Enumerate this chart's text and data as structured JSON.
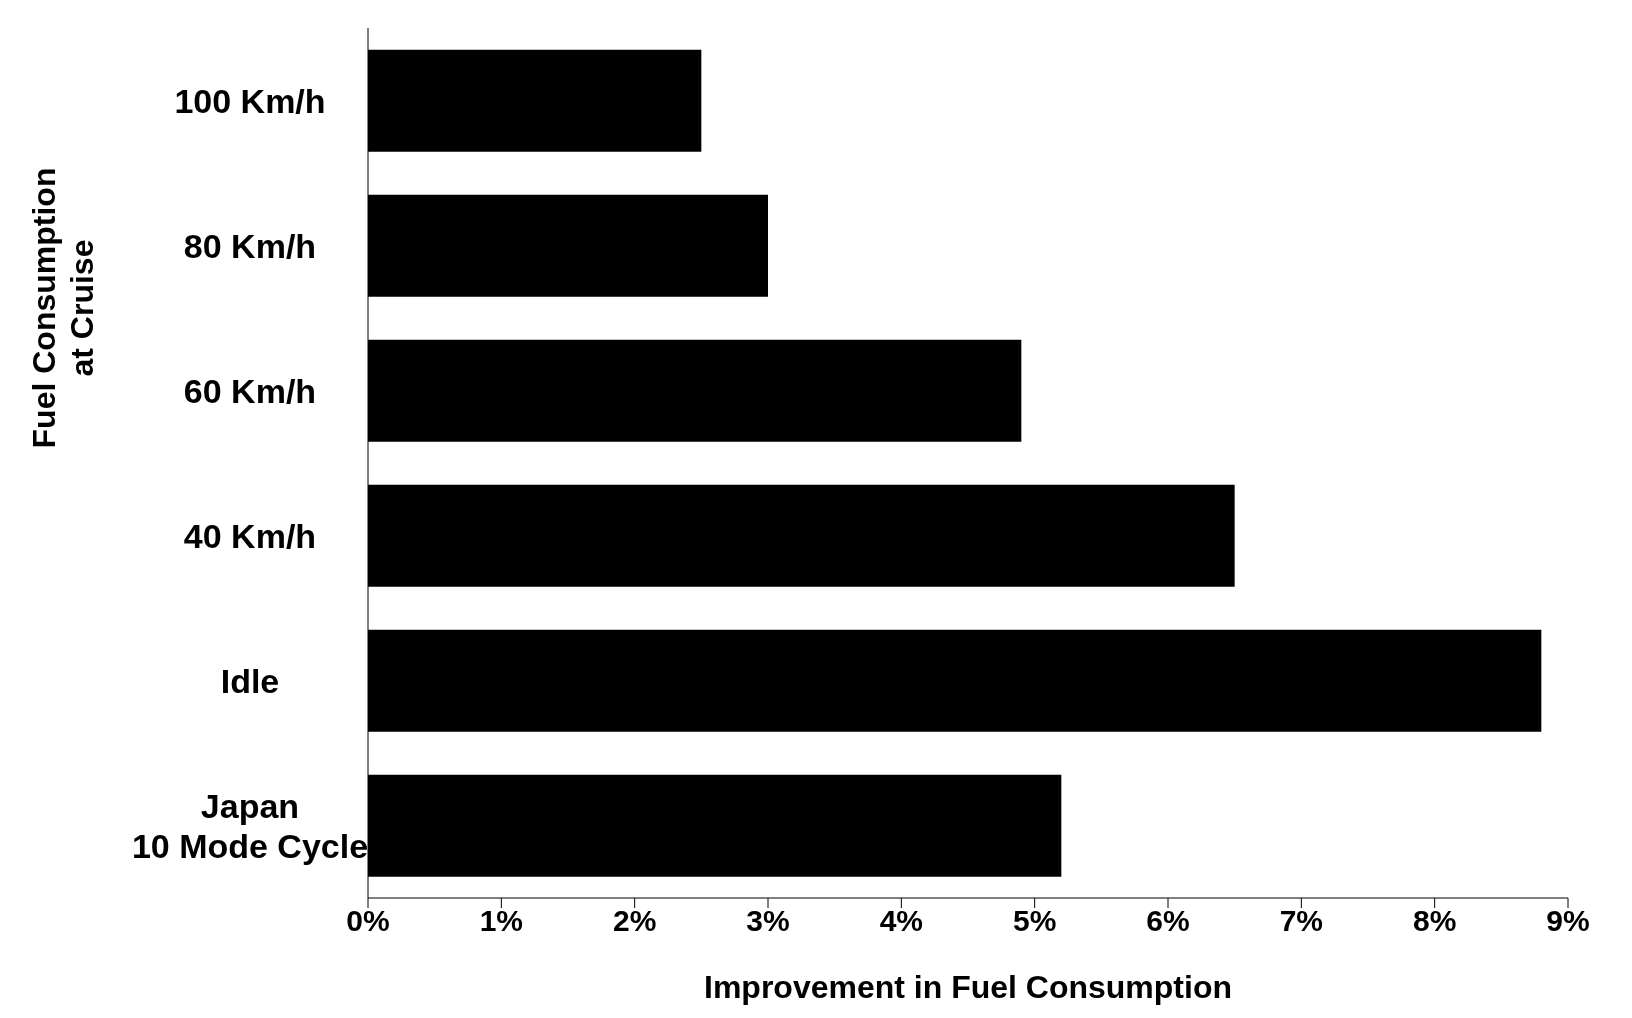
{
  "chart_data": {
    "type": "bar",
    "orientation": "horizontal",
    "xlabel": "Improvement in Fuel Consumption",
    "ylabel": "Fuel Consumption\nat Cruise",
    "categories": [
      "100 Km/h",
      "80 Km/h",
      "60 Km/h",
      "40 Km/h",
      "Idle",
      "Japan\n10 Mode Cycle"
    ],
    "values": [
      2.5,
      3.0,
      4.9,
      6.5,
      8.8,
      5.2
    ],
    "color": "#000000",
    "xlim": [
      0,
      9
    ],
    "xticks": [
      {
        "value": 0,
        "label": "0%"
      },
      {
        "value": 1,
        "label": "1%"
      },
      {
        "value": 2,
        "label": "2%"
      },
      {
        "value": 3,
        "label": "3%"
      },
      {
        "value": 4,
        "label": "4%"
      },
      {
        "value": 5,
        "label": "5%"
      },
      {
        "value": 6,
        "label": "6%"
      },
      {
        "value": 7,
        "label": "7%"
      },
      {
        "value": 8,
        "label": "8%"
      },
      {
        "value": 9,
        "label": "9%"
      }
    ],
    "grid": false
  }
}
